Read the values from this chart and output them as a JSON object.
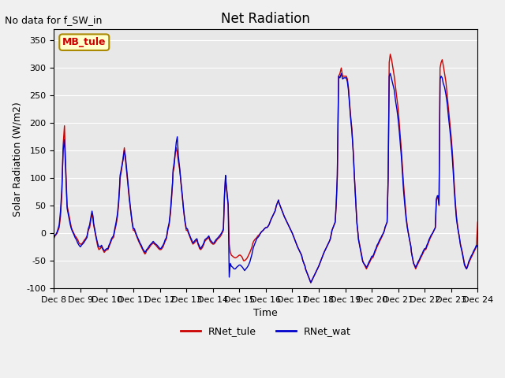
{
  "title": "Net Radiation",
  "annotation_text": "No data for f_SW_in",
  "ylabel": "Solar Radiation (W/m2)",
  "xlabel": "Time",
  "tab_label": "MB_tule",
  "ylim": [
    -100,
    370
  ],
  "xlim": [
    0,
    16
  ],
  "background_color": "#e8e8e8",
  "plot_bg_color": "#e8e8e8",
  "rnet_tule_color": "#cc0000",
  "rnet_wat_color": "#0000cc",
  "xtick_labels": [
    "Dec 8",
    "Dec 9",
    "Dec 10",
    "Dec 11",
    "Dec 12",
    "Dec 13",
    "Dec 14",
    "Dec 15",
    "Dec 16",
    "Dec 17",
    "Dec 18",
    "Dec 19",
    "Dec 20",
    "Dec 21",
    "Dec 22",
    "Dec 23",
    "Dec 24"
  ],
  "ytick_values": [
    -100,
    -50,
    0,
    50,
    100,
    150,
    200,
    250,
    300,
    350
  ],
  "rnet_tule": {
    "x": [
      0.0,
      0.04,
      0.08,
      0.12,
      0.16,
      0.2,
      0.25,
      0.3,
      0.35,
      0.4,
      0.44,
      0.48,
      0.5,
      0.54,
      0.58,
      0.62,
      0.66,
      0.7,
      0.75,
      0.8,
      0.85,
      0.9,
      0.95,
      1.0,
      1.04,
      1.08,
      1.12,
      1.16,
      1.2,
      1.25,
      1.3,
      1.35,
      1.4,
      1.44,
      1.48,
      1.5,
      1.54,
      1.58,
      1.62,
      1.66,
      1.7,
      1.75,
      1.8,
      1.85,
      1.9,
      1.95,
      2.0,
      2.04,
      2.08,
      2.12,
      2.16,
      2.2,
      2.25,
      2.3,
      2.35,
      2.4,
      2.44,
      2.48,
      2.5,
      2.54,
      2.58,
      2.62,
      2.66,
      2.7,
      2.75,
      2.8,
      2.85,
      2.9,
      2.95,
      3.0,
      3.04,
      3.08,
      3.12,
      3.16,
      3.2,
      3.25,
      3.3,
      3.35,
      3.4,
      3.44,
      3.48,
      3.5,
      3.54,
      3.58,
      3.62,
      3.66,
      3.7,
      3.75,
      3.8,
      3.85,
      3.9,
      3.95,
      4.0,
      4.04,
      4.08,
      4.12,
      4.16,
      4.2,
      4.25,
      4.3,
      4.35,
      4.4,
      4.44,
      4.48,
      4.5,
      4.54,
      4.58,
      4.62,
      4.66,
      4.7,
      4.75,
      4.8,
      4.85,
      4.9,
      4.95,
      5.0,
      5.04,
      5.08,
      5.12,
      5.16,
      5.2,
      5.25,
      5.3,
      5.35,
      5.4,
      5.44,
      5.48,
      5.5,
      5.54,
      5.58,
      5.62,
      5.66,
      5.7,
      5.75,
      5.8,
      5.85,
      5.9,
      5.95,
      6.0,
      6.04,
      6.08,
      6.12,
      6.16,
      6.2,
      6.25,
      6.3,
      6.35,
      6.4,
      6.44,
      6.48,
      6.5,
      6.54,
      6.58,
      6.62,
      6.66,
      6.7,
      6.75,
      6.8,
      6.85,
      6.9,
      6.95,
      7.0,
      7.04,
      7.08,
      7.12,
      7.16,
      7.2,
      7.25,
      7.3,
      7.35,
      7.4,
      7.44,
      7.48,
      7.5,
      7.54,
      7.58,
      7.62,
      7.66,
      7.7,
      7.75,
      7.8,
      7.85,
      7.9,
      7.95,
      8.0,
      8.04,
      8.08,
      8.12,
      8.16,
      8.2,
      8.25,
      8.3,
      8.35,
      8.4,
      8.44,
      8.48,
      8.5,
      8.54,
      8.58,
      8.62,
      8.66,
      8.7,
      8.75,
      8.8,
      8.85,
      8.9,
      8.95,
      9.0,
      9.04,
      9.08,
      9.12,
      9.16,
      9.2,
      9.25,
      9.3,
      9.35,
      9.4,
      9.44,
      9.48,
      9.5,
      9.54,
      9.58,
      9.62,
      9.66,
      9.7,
      9.75,
      9.8,
      9.85,
      9.9,
      9.95,
      10.0,
      10.04,
      10.08,
      10.12,
      10.16,
      10.2,
      10.25,
      10.3,
      10.35,
      10.4,
      10.44,
      10.48,
      10.5,
      10.54,
      10.58,
      10.62,
      10.66,
      10.7,
      10.75,
      10.8,
      10.85,
      10.9,
      10.95,
      11.0,
      11.04,
      11.08,
      11.12,
      11.16,
      11.2,
      11.25,
      11.3,
      11.35,
      11.4,
      11.44,
      11.48,
      11.5,
      11.54,
      11.58,
      11.62,
      11.66,
      11.7,
      11.75,
      11.8,
      11.85,
      11.9,
      11.95,
      12.0,
      12.04,
      12.08,
      12.12,
      12.16,
      12.2,
      12.25,
      12.3,
      12.35,
      12.4,
      12.44,
      12.48,
      12.5,
      12.54,
      12.58,
      12.62,
      12.66,
      12.7,
      12.75,
      12.8,
      12.85,
      12.9,
      12.95,
      13.0,
      13.04,
      13.08,
      13.12,
      13.16,
      13.2,
      13.25,
      13.3,
      13.35,
      13.4,
      13.44,
      13.48,
      13.5,
      13.54,
      13.58,
      13.62,
      13.66,
      13.7,
      13.75,
      13.8,
      13.85,
      13.9,
      13.95,
      14.0,
      14.04,
      14.08,
      14.12,
      14.16,
      14.2,
      14.25,
      14.3,
      14.35,
      14.4,
      14.44,
      14.48,
      14.5,
      14.54,
      14.58,
      14.62,
      14.66,
      14.7,
      14.75,
      14.8,
      14.85,
      14.9,
      14.95,
      15.0,
      15.04,
      15.08,
      15.12,
      15.16,
      15.2,
      15.25,
      15.3,
      15.35,
      15.4,
      15.44,
      15.48,
      15.5,
      15.54,
      15.58,
      15.62,
      15.66,
      15.7,
      15.75,
      15.8,
      15.85,
      15.9,
      15.95,
      16.0
    ],
    "y": [
      -10,
      -5,
      -3,
      0,
      5,
      10,
      30,
      70,
      160,
      195,
      130,
      75,
      50,
      40,
      30,
      20,
      10,
      5,
      0,
      -5,
      -8,
      -12,
      -18,
      -20,
      -20,
      -18,
      -15,
      -12,
      -10,
      -5,
      5,
      10,
      25,
      35,
      25,
      15,
      5,
      -5,
      -15,
      -25,
      -30,
      -28,
      -25,
      -30,
      -35,
      -32,
      -30,
      -30,
      -25,
      -20,
      -15,
      -10,
      -8,
      5,
      15,
      30,
      50,
      80,
      100,
      110,
      125,
      140,
      155,
      135,
      110,
      85,
      60,
      40,
      20,
      5,
      5,
      0,
      -5,
      -10,
      -15,
      -20,
      -25,
      -30,
      -35,
      -38,
      -35,
      -32,
      -30,
      -28,
      -25,
      -22,
      -20,
      -18,
      -20,
      -22,
      -25,
      -28,
      -30,
      -30,
      -28,
      -25,
      -20,
      -15,
      -10,
      5,
      15,
      35,
      60,
      90,
      110,
      120,
      145,
      155,
      145,
      130,
      115,
      90,
      65,
      40,
      20,
      5,
      5,
      0,
      -5,
      -10,
      -15,
      -20,
      -18,
      -15,
      -12,
      -20,
      -25,
      -28,
      -30,
      -28,
      -25,
      -20,
      -15,
      -12,
      -10,
      -8,
      -15,
      -18,
      -20,
      -20,
      -18,
      -15,
      -12,
      -10,
      -8,
      -5,
      0,
      5,
      65,
      100,
      90,
      70,
      50,
      -20,
      -35,
      -40,
      -42,
      -44,
      -45,
      -44,
      -42,
      -40,
      -40,
      -42,
      -45,
      -50,
      -50,
      -48,
      -45,
      -40,
      -35,
      -30,
      -25,
      -20,
      -15,
      -12,
      -10,
      -8,
      -5,
      -3,
      0,
      3,
      5,
      8,
      10,
      10,
      12,
      15,
      20,
      25,
      30,
      35,
      40,
      50,
      55,
      60,
      55,
      50,
      45,
      40,
      35,
      30,
      25,
      20,
      15,
      10,
      5,
      0,
      -5,
      -10,
      -15,
      -20,
      -25,
      -30,
      -35,
      -40,
      -50,
      -55,
      -60,
      -65,
      -70,
      -75,
      -80,
      -85,
      -90,
      -85,
      -80,
      -75,
      -70,
      -65,
      -60,
      -55,
      -50,
      -45,
      -40,
      -35,
      -30,
      -25,
      -20,
      -15,
      -10,
      0,
      5,
      10,
      15,
      20,
      50,
      100,
      285,
      290,
      300,
      285,
      285,
      285,
      285,
      280,
      265,
      240,
      215,
      190,
      150,
      100,
      55,
      20,
      0,
      -10,
      -20,
      -30,
      -40,
      -50,
      -55,
      -60,
      -65,
      -60,
      -55,
      -50,
      -45,
      -45,
      -40,
      -35,
      -30,
      -25,
      -20,
      -15,
      -10,
      -5,
      0,
      5,
      10,
      15,
      20,
      100,
      310,
      325,
      315,
      300,
      285,
      265,
      245,
      225,
      200,
      175,
      150,
      120,
      90,
      60,
      30,
      10,
      -5,
      -15,
      -25,
      -35,
      -45,
      -55,
      -60,
      -65,
      -60,
      -55,
      -50,
      -45,
      -40,
      -35,
      -30,
      -30,
      -25,
      -20,
      -15,
      -10,
      -5,
      0,
      5,
      10,
      60,
      65,
      65,
      50,
      300,
      310,
      315,
      305,
      290,
      275,
      250,
      225,
      200,
      175,
      150,
      120,
      85,
      55,
      30,
      10,
      -5,
      -20,
      -30,
      -40,
      -50,
      -55,
      -60,
      -65,
      -60,
      -55,
      -50,
      -45,
      -40,
      -35,
      -30,
      -25,
      20
    ]
  },
  "rnet_wat": {
    "x": [
      0.0,
      0.04,
      0.08,
      0.12,
      0.16,
      0.2,
      0.25,
      0.3,
      0.35,
      0.4,
      0.44,
      0.48,
      0.5,
      0.54,
      0.58,
      0.62,
      0.66,
      0.7,
      0.75,
      0.8,
      0.85,
      0.9,
      0.95,
      1.0,
      1.04,
      1.08,
      1.12,
      1.16,
      1.2,
      1.25,
      1.3,
      1.35,
      1.4,
      1.44,
      1.48,
      1.5,
      1.54,
      1.58,
      1.62,
      1.66,
      1.7,
      1.75,
      1.8,
      1.85,
      1.9,
      1.95,
      2.0,
      2.04,
      2.08,
      2.12,
      2.16,
      2.2,
      2.25,
      2.3,
      2.35,
      2.4,
      2.44,
      2.48,
      2.5,
      2.54,
      2.58,
      2.62,
      2.66,
      2.7,
      2.75,
      2.8,
      2.85,
      2.9,
      2.95,
      3.0,
      3.04,
      3.08,
      3.12,
      3.16,
      3.2,
      3.25,
      3.3,
      3.35,
      3.4,
      3.44,
      3.48,
      3.5,
      3.54,
      3.58,
      3.62,
      3.66,
      3.7,
      3.75,
      3.8,
      3.85,
      3.9,
      3.95,
      4.0,
      4.04,
      4.08,
      4.12,
      4.16,
      4.2,
      4.25,
      4.3,
      4.35,
      4.4,
      4.44,
      4.48,
      4.5,
      4.54,
      4.58,
      4.62,
      4.66,
      4.7,
      4.75,
      4.8,
      4.85,
      4.9,
      4.95,
      5.0,
      5.04,
      5.08,
      5.12,
      5.16,
      5.2,
      5.25,
      5.3,
      5.35,
      5.4,
      5.44,
      5.48,
      5.5,
      5.54,
      5.58,
      5.62,
      5.66,
      5.7,
      5.75,
      5.8,
      5.85,
      5.9,
      5.95,
      6.0,
      6.04,
      6.08,
      6.12,
      6.16,
      6.2,
      6.25,
      6.3,
      6.35,
      6.4,
      6.44,
      6.48,
      6.5,
      6.54,
      6.58,
      6.62,
      6.66,
      6.7,
      6.75,
      6.8,
      6.85,
      6.9,
      6.95,
      7.0,
      7.04,
      7.08,
      7.12,
      7.16,
      7.2,
      7.25,
      7.3,
      7.35,
      7.4,
      7.44,
      7.48,
      7.5,
      7.54,
      7.58,
      7.62,
      7.66,
      7.7,
      7.75,
      7.8,
      7.85,
      7.9,
      7.95,
      8.0,
      8.04,
      8.08,
      8.12,
      8.16,
      8.2,
      8.25,
      8.3,
      8.35,
      8.4,
      8.44,
      8.48,
      8.5,
      8.54,
      8.58,
      8.62,
      8.66,
      8.7,
      8.75,
      8.8,
      8.85,
      8.9,
      8.95,
      9.0,
      9.04,
      9.08,
      9.12,
      9.16,
      9.2,
      9.25,
      9.3,
      9.35,
      9.4,
      9.44,
      9.48,
      9.5,
      9.54,
      9.58,
      9.62,
      9.66,
      9.7,
      9.75,
      9.8,
      9.85,
      9.9,
      9.95,
      10.0,
      10.04,
      10.08,
      10.12,
      10.16,
      10.2,
      10.25,
      10.3,
      10.35,
      10.4,
      10.44,
      10.48,
      10.5,
      10.54,
      10.58,
      10.62,
      10.66,
      10.7,
      10.75,
      10.8,
      10.85,
      10.9,
      10.95,
      11.0,
      11.04,
      11.08,
      11.12,
      11.16,
      11.2,
      11.25,
      11.3,
      11.35,
      11.4,
      11.44,
      11.48,
      11.5,
      11.54,
      11.58,
      11.62,
      11.66,
      11.7,
      11.75,
      11.8,
      11.85,
      11.9,
      11.95,
      12.0,
      12.04,
      12.08,
      12.12,
      12.16,
      12.2,
      12.25,
      12.3,
      12.35,
      12.4,
      12.44,
      12.48,
      12.5,
      12.54,
      12.58,
      12.62,
      12.66,
      12.7,
      12.75,
      12.8,
      12.85,
      12.9,
      12.95,
      13.0,
      13.04,
      13.08,
      13.12,
      13.16,
      13.2,
      13.25,
      13.3,
      13.35,
      13.4,
      13.44,
      13.48,
      13.5,
      13.54,
      13.58,
      13.62,
      13.66,
      13.7,
      13.75,
      13.8,
      13.85,
      13.9,
      13.95,
      14.0,
      14.04,
      14.08,
      14.12,
      14.16,
      14.2,
      14.25,
      14.3,
      14.35,
      14.4,
      14.44,
      14.48,
      14.5,
      14.54,
      14.58,
      14.62,
      14.66,
      14.7,
      14.75,
      14.8,
      14.85,
      14.9,
      14.95,
      15.0,
      15.04,
      15.08,
      15.12,
      15.16,
      15.2,
      15.25,
      15.3,
      15.35,
      15.4,
      15.44,
      15.48,
      15.5,
      15.54,
      15.58,
      15.62,
      15.66,
      15.7,
      15.75,
      15.8,
      15.85,
      15.9,
      15.95,
      16.0
    ],
    "y": [
      -8,
      -4,
      -2,
      2,
      8,
      15,
      40,
      80,
      150,
      170,
      120,
      70,
      45,
      35,
      25,
      15,
      8,
      3,
      -2,
      -8,
      -12,
      -18,
      -22,
      -25,
      -22,
      -20,
      -18,
      -15,
      -12,
      -8,
      8,
      15,
      30,
      40,
      30,
      18,
      8,
      -3,
      -12,
      -20,
      -25,
      -25,
      -22,
      -28,
      -32,
      -30,
      -28,
      -28,
      -22,
      -18,
      -12,
      -8,
      -5,
      8,
      20,
      35,
      55,
      85,
      105,
      115,
      125,
      135,
      150,
      140,
      115,
      90,
      65,
      42,
      22,
      8,
      8,
      2,
      -3,
      -8,
      -12,
      -18,
      -22,
      -28,
      -32,
      -35,
      -32,
      -30,
      -28,
      -25,
      -22,
      -20,
      -18,
      -15,
      -18,
      -20,
      -22,
      -25,
      -28,
      -28,
      -25,
      -22,
      -18,
      -12,
      -8,
      8,
      18,
      40,
      65,
      92,
      115,
      128,
      145,
      165,
      175,
      140,
      118,
      92,
      68,
      42,
      22,
      8,
      8,
      2,
      -3,
      -8,
      -12,
      -18,
      -15,
      -12,
      -10,
      -18,
      -22,
      -25,
      -28,
      -25,
      -22,
      -18,
      -12,
      -10,
      -8,
      -5,
      -12,
      -15,
      -18,
      -18,
      -15,
      -12,
      -10,
      -8,
      -5,
      -2,
      2,
      8,
      70,
      105,
      92,
      72,
      52,
      -80,
      -55,
      -60,
      -62,
      -65,
      -65,
      -62,
      -60,
      -58,
      -58,
      -60,
      -62,
      -65,
      -68,
      -65,
      -62,
      -58,
      -52,
      -45,
      -38,
      -32,
      -25,
      -20,
      -15,
      -10,
      -8,
      -5,
      0,
      3,
      5,
      8,
      10,
      10,
      12,
      15,
      20,
      25,
      30,
      35,
      40,
      50,
      55,
      60,
      55,
      50,
      45,
      40,
      35,
      30,
      25,
      20,
      15,
      10,
      5,
      0,
      -5,
      -10,
      -15,
      -20,
      -25,
      -30,
      -35,
      -40,
      -50,
      -55,
      -60,
      -65,
      -70,
      -75,
      -80,
      -85,
      -90,
      -85,
      -80,
      -75,
      -70,
      -65,
      -60,
      -55,
      -50,
      -45,
      -40,
      -35,
      -30,
      -25,
      -20,
      -15,
      -10,
      0,
      5,
      10,
      15,
      20,
      55,
      105,
      285,
      282,
      290,
      280,
      282,
      282,
      282,
      275,
      260,
      235,
      210,
      185,
      148,
      98,
      52,
      18,
      0,
      -12,
      -22,
      -32,
      -42,
      -52,
      -55,
      -58,
      -62,
      -58,
      -52,
      -48,
      -42,
      -42,
      -38,
      -32,
      -28,
      -22,
      -18,
      -12,
      -8,
      -3,
      0,
      5,
      10,
      15,
      20,
      100,
      285,
      290,
      280,
      270,
      260,
      240,
      225,
      205,
      185,
      162,
      138,
      108,
      78,
      50,
      25,
      8,
      -5,
      -15,
      -25,
      -35,
      -45,
      -55,
      -58,
      -62,
      -58,
      -52,
      -48,
      -42,
      -38,
      -32,
      -28,
      -28,
      -22,
      -18,
      -12,
      -8,
      -3,
      0,
      5,
      10,
      62,
      68,
      68,
      52,
      280,
      285,
      282,
      272,
      265,
      252,
      235,
      210,
      188,
      162,
      138,
      108,
      75,
      48,
      25,
      8,
      -5,
      -22,
      -32,
      -42,
      -52,
      -58,
      -62,
      -65,
      -60,
      -52,
      -48,
      -42,
      -38,
      -32,
      -28,
      -22,
      -25
    ]
  }
}
